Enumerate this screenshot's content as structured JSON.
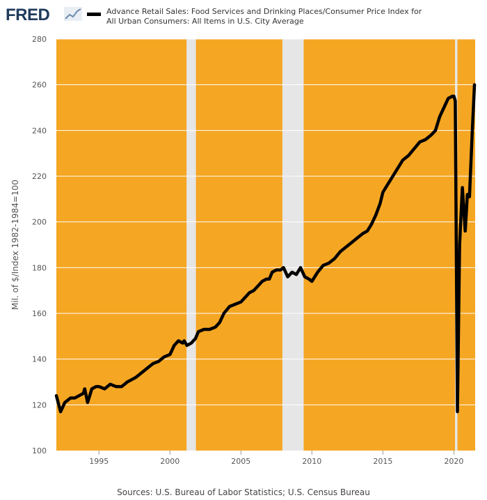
{
  "brand": {
    "logo_text": "FRED",
    "icon": "trend-line-icon"
  },
  "source_text": "Sources: U.S. Bureau of Labor Statistics; U.S. Census Bureau",
  "colors": {
    "plot_bg": "#f5a623",
    "recession": "#e6e6e6",
    "line": "#000000",
    "grid": "#ffffff",
    "tick_text": "#555555"
  },
  "chart_data": {
    "type": "line",
    "title": "",
    "xlabel": "",
    "ylabel": "Mil. of $/Index 1982-1984=100",
    "xlim": [
      1992.0,
      2021.5
    ],
    "ylim": [
      100,
      280
    ],
    "y_ticks": [
      100,
      120,
      140,
      160,
      180,
      200,
      220,
      240,
      260,
      280
    ],
    "x_ticks": [
      1995,
      2000,
      2005,
      2010,
      2015,
      2020
    ],
    "grid": true,
    "legend": "top",
    "recessions": [
      [
        2001.17,
        2001.83
      ],
      [
        2007.92,
        2009.42
      ],
      [
        2020.08,
        2020.25
      ]
    ],
    "series": [
      {
        "name": "Advance Retail Sales: Food Services and Drinking Places/Consumer Price Index for All Urban Consumers: All Items in U.S. City Average",
        "x": [
          1992.0,
          1992.3,
          1992.6,
          1993.0,
          1993.3,
          1993.6,
          1993.9,
          1994.0,
          1994.2,
          1994.5,
          1994.8,
          1995.0,
          1995.4,
          1995.8,
          1996.2,
          1996.6,
          1997.0,
          1997.3,
          1997.6,
          1998.0,
          1998.4,
          1998.8,
          1999.2,
          1999.6,
          2000.0,
          2000.3,
          2000.6,
          2000.9,
          2001.0,
          2001.2,
          2001.5,
          2001.8,
          2002.0,
          2002.4,
          2002.8,
          2003.2,
          2003.5,
          2003.8,
          2004.2,
          2004.6,
          2005.0,
          2005.3,
          2005.6,
          2005.9,
          2006.2,
          2006.5,
          2006.8,
          2007.0,
          2007.2,
          2007.5,
          2007.8,
          2008.0,
          2008.3,
          2008.6,
          2008.9,
          2009.2,
          2009.5,
          2009.8,
          2010.0,
          2010.4,
          2010.8,
          2011.2,
          2011.6,
          2012.0,
          2012.4,
          2012.8,
          2013.2,
          2013.6,
          2013.9,
          2014.2,
          2014.5,
          2014.8,
          2015.0,
          2015.3,
          2015.6,
          2016.0,
          2016.4,
          2016.8,
          2017.2,
          2017.6,
          2018.0,
          2018.4,
          2018.7,
          2019.0,
          2019.3,
          2019.6,
          2019.9,
          2020.0,
          2020.1,
          2020.25,
          2020.4,
          2020.6,
          2020.8,
          2020.95,
          2021.1,
          2021.3,
          2021.45
        ],
        "values": [
          124,
          117,
          121,
          123,
          123,
          124,
          125,
          127,
          121,
          127,
          128,
          128,
          127,
          129,
          128,
          128,
          130,
          131,
          132,
          134,
          136,
          138,
          139,
          141,
          142,
          146,
          148,
          147,
          148,
          146,
          147,
          149,
          152,
          153,
          153,
          154,
          156,
          160,
          163,
          164,
          165,
          167,
          169,
          170,
          172,
          174,
          175,
          175,
          178,
          179,
          179,
          180,
          176,
          178,
          177,
          180,
          176,
          175,
          174,
          178,
          181,
          182,
          184,
          187,
          189,
          191,
          193,
          195,
          196,
          199,
          203,
          208,
          213,
          216,
          219,
          223,
          227,
          229,
          232,
          235,
          236,
          238,
          240,
          246,
          250,
          254,
          255,
          255,
          253,
          117,
          190,
          215,
          196,
          212,
          211,
          240,
          260
        ]
      }
    ]
  }
}
